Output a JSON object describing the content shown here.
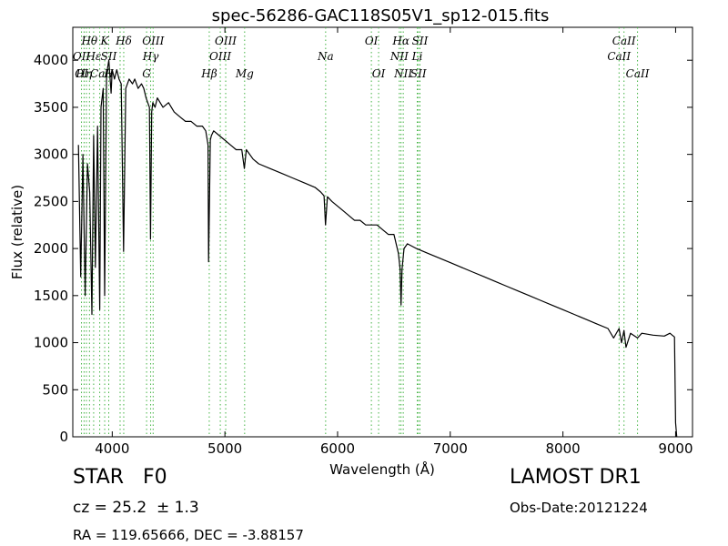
{
  "chart_data": {
    "type": "line",
    "title": "spec-56286-GAC118S05V1_sp12-015.fits",
    "xlabel": "Wavelength (Å)",
    "ylabel": "Flux (relative)",
    "xlim": [
      3650,
      9150
    ],
    "ylim": [
      0,
      4350
    ],
    "xticks": [
      4000,
      5000,
      6000,
      7000,
      8000,
      9000
    ],
    "yticks": [
      0,
      500,
      1000,
      1500,
      2000,
      2500,
      3000,
      3500,
      4000
    ],
    "grid": false,
    "line_color": "#000000",
    "marker_color": "#44b444",
    "x": [
      3700,
      3720,
      3740,
      3760,
      3780,
      3800,
      3820,
      3835,
      3850,
      3870,
      3889,
      3900,
      3920,
      3933,
      3950,
      3970,
      3990,
      4000,
      4020,
      4040,
      4060,
      4080,
      4101,
      4120,
      4150,
      4180,
      4200,
      4230,
      4260,
      4280,
      4300,
      4330,
      4340,
      4350,
      4360,
      4380,
      4400,
      4450,
      4500,
      4550,
      4600,
      4650,
      4700,
      4750,
      4800,
      4830,
      4850,
      4855,
      4861,
      4870,
      4880,
      4900,
      4950,
      5000,
      5050,
      5100,
      5150,
      5172,
      5190,
      5250,
      5300,
      5400,
      5500,
      5600,
      5700,
      5800,
      5850,
      5880,
      5893,
      5910,
      5950,
      6000,
      6050,
      6100,
      6150,
      6200,
      6250,
      6300,
      6350,
      6400,
      6450,
      6500,
      6540,
      6555,
      6563,
      6572,
      6590,
      6620,
      6700,
      6800,
      6900,
      7000,
      7100,
      7200,
      7300,
      7400,
      7500,
      7600,
      7700,
      7800,
      7900,
      8000,
      8100,
      8200,
      8300,
      8400,
      8450,
      8498,
      8520,
      8542,
      8560,
      8600,
      8662,
      8700,
      8800,
      8900,
      8950,
      8970,
      8990,
      9000,
      9010
    ],
    "y": [
      3100,
      1700,
      3000,
      1500,
      2900,
      2600,
      1300,
      3200,
      1800,
      3300,
      1350,
      3500,
      3700,
      1500,
      3850,
      4000,
      3650,
      3900,
      3800,
      3900,
      3800,
      3750,
      1970,
      3700,
      3800,
      3750,
      3800,
      3700,
      3750,
      3700,
      3600,
      3500,
      2100,
      3450,
      3550,
      3500,
      3600,
      3500,
      3550,
      3450,
      3400,
      3350,
      3350,
      3300,
      3300,
      3250,
      3100,
      1860,
      2300,
      3150,
      3200,
      3250,
      3200,
      3150,
      3100,
      3050,
      3050,
      2850,
      3050,
      2950,
      2900,
      2850,
      2800,
      2750,
      2700,
      2650,
      2600,
      2560,
      2250,
      2550,
      2500,
      2450,
      2400,
      2350,
      2300,
      2300,
      2250,
      2250,
      2250,
      2200,
      2150,
      2150,
      1950,
      1780,
      1400,
      1780,
      2000,
      2050,
      2000,
      1950,
      1900,
      1850,
      1800,
      1750,
      1700,
      1650,
      1600,
      1550,
      1500,
      1450,
      1400,
      1350,
      1300,
      1250,
      1200,
      1150,
      1050,
      1150,
      1000,
      1130,
      950,
      1100,
      1050,
      1100,
      1080,
      1070,
      1100,
      1080,
      1060,
      150,
      0
    ]
  },
  "lines": {
    "markers": [
      3727,
      3750,
      3771,
      3798,
      3835,
      3889,
      3933,
      3969,
      4070,
      4102,
      4305,
      4341,
      4363,
      4861,
      4959,
      5007,
      5175,
      5894,
      6300,
      6364,
      6548,
      6563,
      6583,
      6707,
      6717,
      6731,
      8498,
      8542,
      8662
    ],
    "labels": [
      {
        "text": "Hθ",
        "x": 3798,
        "row": 0
      },
      {
        "text": "K",
        "x": 3933,
        "row": 0
      },
      {
        "text": "Hδ",
        "x": 4102,
        "row": 0
      },
      {
        "text": "OIII",
        "x": 4363,
        "row": 0
      },
      {
        "text": "OIII",
        "x": 5007,
        "row": 0
      },
      {
        "text": "OI",
        "x": 6300,
        "row": 0
      },
      {
        "text": "Hα",
        "x": 6563,
        "row": 0
      },
      {
        "text": "SII",
        "x": 6731,
        "row": 0
      },
      {
        "text": "CaII",
        "x": 8542,
        "row": 0
      },
      {
        "text": "OII",
        "x": 3727,
        "row": 1
      },
      {
        "text": "Hε",
        "x": 3835,
        "row": 1
      },
      {
        "text": "SII",
        "x": 3969,
        "row": 1
      },
      {
        "text": "Hγ",
        "x": 4341,
        "row": 1
      },
      {
        "text": "OIII",
        "x": 4959,
        "row": 1
      },
      {
        "text": "Na",
        "x": 5894,
        "row": 1
      },
      {
        "text": "NII",
        "x": 6548,
        "row": 1
      },
      {
        "text": "Li",
        "x": 6707,
        "row": 1
      },
      {
        "text": "CaII",
        "x": 8498,
        "row": 1
      },
      {
        "text": "OI",
        "x": 3727,
        "row": 2
      },
      {
        "text": "Hη",
        "x": 3750,
        "row": 2
      },
      {
        "text": "CaI",
        "x": 3889,
        "row": 2
      },
      {
        "text": "H",
        "x": 3969,
        "row": 2
      },
      {
        "text": "G",
        "x": 4305,
        "row": 2
      },
      {
        "text": "Hβ",
        "x": 4861,
        "row": 2
      },
      {
        "text": "Mg",
        "x": 5175,
        "row": 2
      },
      {
        "text": "OI",
        "x": 6364,
        "row": 2
      },
      {
        "text": "NII",
        "x": 6583,
        "row": 2
      },
      {
        "text": "SII",
        "x": 6717,
        "row": 2
      },
      {
        "text": "CaII",
        "x": 8662,
        "row": 2
      }
    ]
  },
  "info": {
    "object_class": "STAR   F0",
    "survey": "LAMOST DR1",
    "redshift": "cz = 25.2  ± 1.3",
    "obs_date": "Obs-Date:20121224",
    "coords": "RA = 119.65666, DEC = -3.88157"
  }
}
